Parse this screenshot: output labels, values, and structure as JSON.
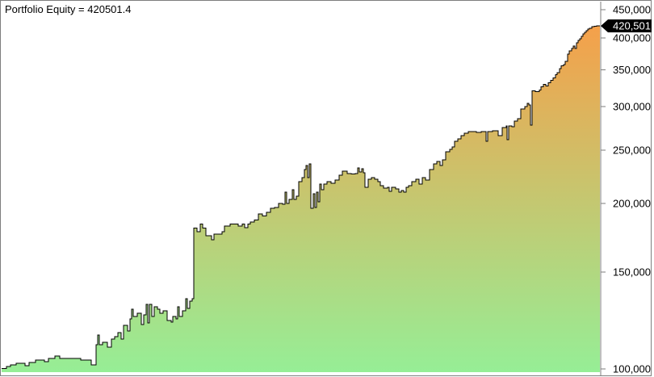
{
  "title": {
    "text": "Portfolio Equity = 420501.4"
  },
  "chart_data": {
    "type": "area",
    "subtype": "stepped-equity-curve",
    "title": "Portfolio Equity",
    "current_value": 420501.4,
    "current_value_label": "420,501",
    "y_axis": {
      "scale": "log",
      "side": "right",
      "ticks": [
        450000,
        400000,
        350000,
        300000,
        250000,
        200000,
        150000,
        100000
      ],
      "top_value": 465560,
      "bottom_value": 98610,
      "tick_color": "#7E7E7E",
      "label_color": "#000000"
    },
    "x_axis": {
      "visible": false,
      "domain": 741
    },
    "grid": false,
    "line_color": "#000000",
    "fill_gradient": {
      "top": "#F5A04A",
      "mid": "#C5C770",
      "bottom": "#96EE96"
    },
    "marker": {
      "bg": "#000000",
      "fg": "#FFFFFF"
    },
    "points": [
      [
        0,
        100200
      ],
      [
        6,
        100950
      ],
      [
        11,
        101650
      ],
      [
        18,
        102350
      ],
      [
        29,
        101300
      ],
      [
        34,
        102700
      ],
      [
        42,
        103700
      ],
      [
        53,
        103000
      ],
      [
        58,
        104400
      ],
      [
        66,
        105500
      ],
      [
        72,
        104400
      ],
      [
        98,
        103700
      ],
      [
        111,
        101650
      ],
      [
        117,
        110600
      ],
      [
        119,
        115200
      ],
      [
        121,
        110600
      ],
      [
        125,
        111700
      ],
      [
        131,
        109500
      ],
      [
        136,
        113300
      ],
      [
        140,
        114400
      ],
      [
        144,
        116400
      ],
      [
        148,
        113300
      ],
      [
        151,
        120000
      ],
      [
        156,
        117200
      ],
      [
        159,
        123250
      ],
      [
        161,
        128400
      ],
      [
        163,
        124500
      ],
      [
        168,
        126200
      ],
      [
        173,
        120400
      ],
      [
        176,
        125400
      ],
      [
        179,
        130900
      ],
      [
        181,
        121200
      ],
      [
        183,
        130900
      ],
      [
        186,
        124500
      ],
      [
        189,
        129700
      ],
      [
        193,
        128400
      ],
      [
        196,
        126200
      ],
      [
        200,
        127500
      ],
      [
        205,
        122400
      ],
      [
        210,
        121600
      ],
      [
        212,
        124500
      ],
      [
        216,
        123250
      ],
      [
        218,
        129700
      ],
      [
        220,
        124500
      ],
      [
        224,
        127500
      ],
      [
        228,
        134200
      ],
      [
        230,
        128800
      ],
      [
        233,
        132800
      ],
      [
        236,
        134200
      ],
      [
        238,
        180200
      ],
      [
        242,
        177600
      ],
      [
        246,
        183300
      ],
      [
        249,
        180200
      ],
      [
        253,
        174600
      ],
      [
        260,
        171700
      ],
      [
        263,
        175900
      ],
      [
        273,
        177600
      ],
      [
        276,
        181900
      ],
      [
        283,
        183300
      ],
      [
        293,
        181900
      ],
      [
        298,
        183300
      ],
      [
        301,
        180700
      ],
      [
        305,
        183300
      ],
      [
        308,
        184900
      ],
      [
        313,
        186400
      ],
      [
        318,
        191400
      ],
      [
        323,
        189700
      ],
      [
        328,
        192700
      ],
      [
        333,
        195900
      ],
      [
        338,
        196600
      ],
      [
        343,
        200000
      ],
      [
        348,
        199400
      ],
      [
        351,
        209600
      ],
      [
        353,
        200000
      ],
      [
        356,
        203300
      ],
      [
        360,
        211700
      ],
      [
        362,
        203300
      ],
      [
        365,
        206100
      ],
      [
        368,
        219000
      ],
      [
        372,
        222800
      ],
      [
        375,
        230500
      ],
      [
        377,
        234400
      ],
      [
        379,
        222800
      ],
      [
        381,
        236100
      ],
      [
        383,
        195900
      ],
      [
        386,
        208200
      ],
      [
        388,
        196600
      ],
      [
        390,
        209600
      ],
      [
        392,
        201400
      ],
      [
        394,
        216800
      ],
      [
        396,
        211700
      ],
      [
        399,
        216800
      ],
      [
        403,
        219000
      ],
      [
        408,
        217500
      ],
      [
        413,
        220500
      ],
      [
        418,
        225200
      ],
      [
        422,
        229000
      ],
      [
        428,
        226600
      ],
      [
        433,
        226000
      ],
      [
        438,
        226600
      ],
      [
        441,
        232000
      ],
      [
        443,
        228200
      ],
      [
        446,
        231300
      ],
      [
        448,
        227400
      ],
      [
        450,
        213800
      ],
      [
        454,
        221200
      ],
      [
        458,
        222800
      ],
      [
        462,
        221200
      ],
      [
        466,
        219000
      ],
      [
        469,
        215300
      ],
      [
        473,
        213100
      ],
      [
        478,
        213800
      ],
      [
        480,
        210300
      ],
      [
        483,
        213800
      ],
      [
        488,
        212400
      ],
      [
        492,
        209600
      ],
      [
        495,
        211000
      ],
      [
        498,
        209600
      ],
      [
        501,
        213800
      ],
      [
        504,
        215300
      ],
      [
        508,
        219000
      ],
      [
        513,
        221200
      ],
      [
        517,
        216800
      ],
      [
        521,
        222800
      ],
      [
        525,
        220500
      ],
      [
        530,
        230500
      ],
      [
        535,
        236100
      ],
      [
        539,
        238200
      ],
      [
        543,
        234400
      ],
      [
        546,
        239900
      ],
      [
        550,
        248200
      ],
      [
        555,
        250700
      ],
      [
        558,
        253400
      ],
      [
        561,
        259300
      ],
      [
        565,
        262000
      ],
      [
        569,
        265600
      ],
      [
        573,
        268300
      ],
      [
        578,
        270100
      ],
      [
        588,
        269200
      ],
      [
        594,
        270100
      ],
      [
        600,
        259300
      ],
      [
        602,
        270100
      ],
      [
        608,
        271000
      ],
      [
        615,
        265600
      ],
      [
        620,
        274700
      ],
      [
        625,
        276500
      ],
      [
        626,
        261100
      ],
      [
        628,
        276500
      ],
      [
        632,
        275600
      ],
      [
        635,
        282300
      ],
      [
        639,
        285200
      ],
      [
        643,
        297100
      ],
      [
        648,
        300100
      ],
      [
        651,
        304300
      ],
      [
        653,
        302200
      ],
      [
        655,
        277500
      ],
      [
        657,
        320200
      ],
      [
        661,
        319100
      ],
      [
        666,
        321300
      ],
      [
        668,
        325600
      ],
      [
        671,
        329000
      ],
      [
        674,
        326700
      ],
      [
        677,
        331300
      ],
      [
        680,
        334700
      ],
      [
        683,
        338100
      ],
      [
        686,
        342700
      ],
      [
        688,
        346000
      ],
      [
        691,
        351900
      ],
      [
        693,
        355600
      ],
      [
        696,
        357900
      ],
      [
        698,
        362600
      ],
      [
        701,
        373700
      ],
      [
        703,
        378800
      ],
      [
        706,
        382700
      ],
      [
        708,
        386600
      ],
      [
        710,
        382700
      ],
      [
        712,
        391900
      ],
      [
        714,
        395900
      ],
      [
        716,
        398600
      ],
      [
        718,
        402700
      ],
      [
        720,
        406800
      ],
      [
        722,
        409500
      ],
      [
        724,
        412300
      ],
      [
        726,
        415100
      ],
      [
        728,
        416500
      ],
      [
        731,
        419300
      ],
      [
        734,
        420000
      ],
      [
        737,
        420501.4
      ]
    ]
  }
}
